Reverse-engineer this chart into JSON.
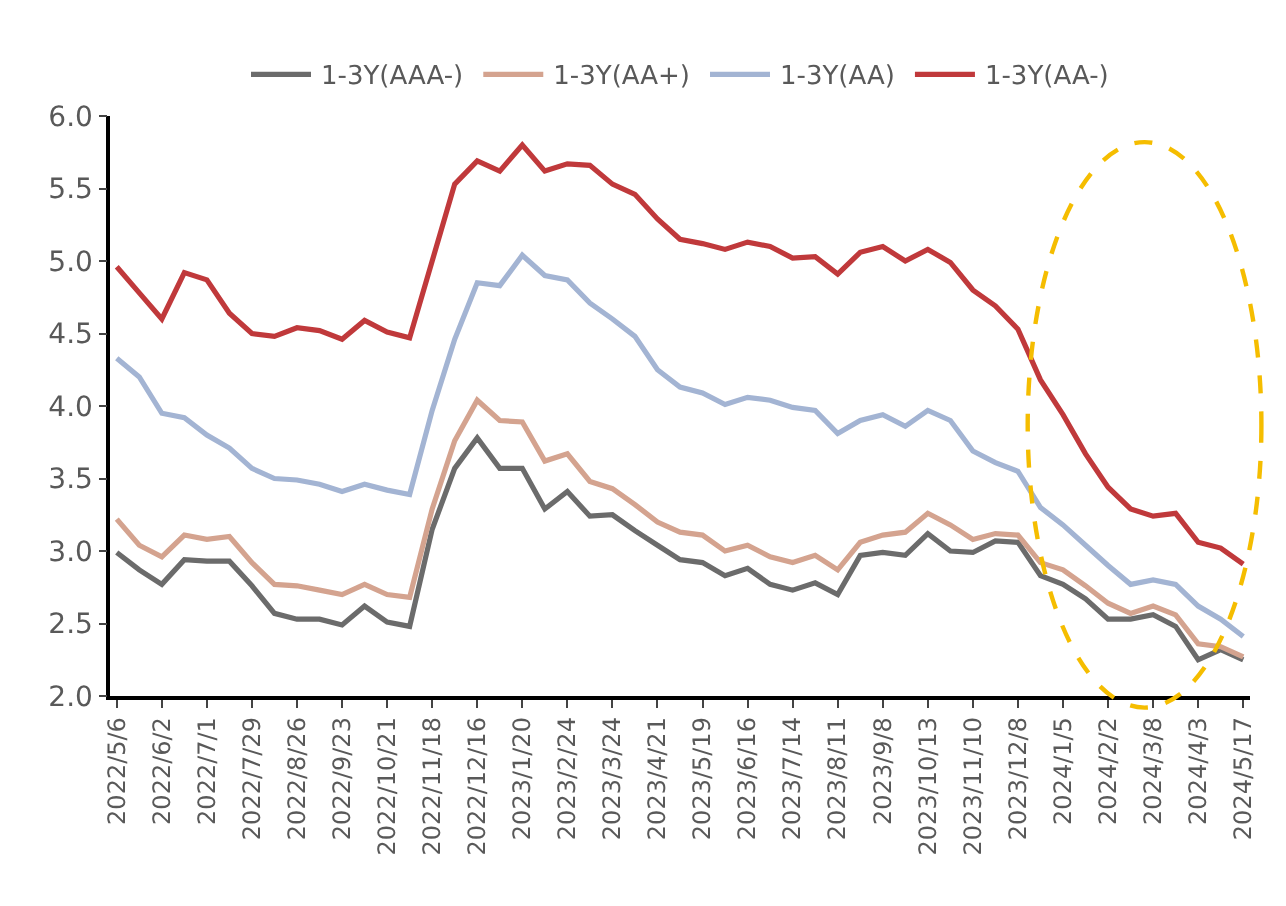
{
  "chart_data": {
    "type": "line",
    "categories": [
      "2022/5/6",
      null,
      "2022/6/2",
      null,
      "2022/7/1",
      null,
      "2022/7/29",
      null,
      "2022/8/26",
      null,
      "2022/9/23",
      null,
      "2022/10/21",
      null,
      "2022/11/18",
      null,
      "2022/12/16",
      null,
      "2023/1/20",
      null,
      "2023/2/24",
      null,
      "2023/3/24",
      null,
      "2023/4/21",
      null,
      "2023/5/19",
      null,
      "2023/6/16",
      null,
      "2023/7/14",
      null,
      "2023/8/11",
      null,
      "2023/9/8",
      null,
      "2023/10/13",
      null,
      "2023/11/10",
      null,
      "2023/12/8",
      null,
      "2024/1/5",
      null,
      "2024/2/2",
      null,
      "2024/3/8",
      null,
      "2024/4/3",
      null,
      "2024/5/17"
    ],
    "series": [
      {
        "name": "1-3Y(AAA-)",
        "color": "#6b6b6b",
        "values": [
          2.99,
          2.87,
          2.77,
          2.94,
          2.93,
          2.93,
          2.76,
          2.57,
          2.53,
          2.53,
          2.49,
          2.62,
          2.51,
          2.48,
          3.15,
          3.57,
          3.78,
          3.57,
          3.57,
          3.29,
          3.41,
          3.24,
          3.25,
          3.14,
          3.04,
          2.94,
          2.92,
          2.83,
          2.88,
          2.77,
          2.73,
          2.78,
          2.7,
          2.97,
          2.99,
          2.97,
          3.12,
          3.0,
          2.99,
          3.07,
          3.06,
          2.83,
          2.77,
          2.67,
          2.53,
          2.53,
          2.56,
          2.48,
          2.25,
          2.32,
          2.25
        ]
      },
      {
        "name": "1-3Y(AA+)",
        "color": "#d4a38f",
        "values": [
          3.22,
          3.04,
          2.96,
          3.11,
          3.08,
          3.1,
          2.92,
          2.77,
          2.76,
          2.73,
          2.7,
          2.77,
          2.7,
          2.68,
          3.29,
          3.76,
          4.04,
          3.9,
          3.89,
          3.62,
          3.67,
          3.48,
          3.43,
          3.32,
          3.2,
          3.13,
          3.11,
          3.0,
          3.04,
          2.96,
          2.92,
          2.97,
          2.87,
          3.06,
          3.11,
          3.13,
          3.26,
          3.18,
          3.08,
          3.12,
          3.11,
          2.92,
          2.87,
          2.76,
          2.64,
          2.57,
          2.62,
          2.56,
          2.36,
          2.34,
          2.27
        ]
      },
      {
        "name": "1-3Y(AA)",
        "color": "#a3b4d3",
        "values": [
          4.33,
          4.2,
          3.95,
          3.92,
          3.8,
          3.71,
          3.57,
          3.5,
          3.49,
          3.46,
          3.41,
          3.46,
          3.42,
          3.39,
          3.97,
          4.46,
          4.85,
          4.83,
          5.04,
          4.9,
          4.87,
          4.71,
          4.6,
          4.48,
          4.25,
          4.13,
          4.09,
          4.01,
          4.06,
          4.04,
          3.99,
          3.97,
          3.81,
          3.9,
          3.94,
          3.86,
          3.97,
          3.9,
          3.69,
          3.61,
          3.55,
          3.3,
          3.18,
          3.04,
          2.9,
          2.77,
          2.8,
          2.77,
          2.62,
          2.53,
          2.41
        ]
      },
      {
        "name": "1-3Y(AA-)",
        "color": "#c0393b",
        "values": [
          4.96,
          4.78,
          4.6,
          4.92,
          4.87,
          4.64,
          4.5,
          4.48,
          4.54,
          4.52,
          4.46,
          4.59,
          4.51,
          4.47,
          5.0,
          5.53,
          5.69,
          5.62,
          5.8,
          5.62,
          5.67,
          5.66,
          5.53,
          5.46,
          5.29,
          5.15,
          5.12,
          5.08,
          5.13,
          5.1,
          5.02,
          5.03,
          4.91,
          5.06,
          5.1,
          5.0,
          5.08,
          4.99,
          4.8,
          4.69,
          4.53,
          4.18,
          3.94,
          3.67,
          3.44,
          3.29,
          3.24,
          3.26,
          3.06,
          3.02,
          2.91
        ]
      }
    ],
    "ylim": [
      2,
      6
    ],
    "yticks": [
      {
        "value": 2,
        "label": "2.0"
      },
      {
        "value": 2.5,
        "label": "2.5"
      },
      {
        "value": 3,
        "label": "3.0"
      },
      {
        "value": 3.5,
        "label": "3.5"
      },
      {
        "value": 4,
        "label": "4.0"
      },
      {
        "value": 4.5,
        "label": "4.5"
      },
      {
        "value": 5,
        "label": "5.0"
      },
      {
        "value": 5.5,
        "label": "5.5"
      },
      {
        "value": 6,
        "label": "6.0"
      }
    ],
    "legend": "top",
    "marker": "none",
    "line_style": "solid"
  }
}
